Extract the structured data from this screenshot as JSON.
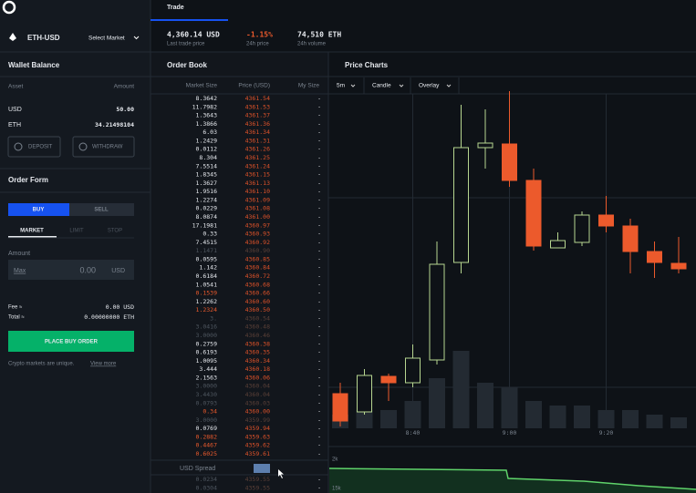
{
  "header": {
    "market": "ETH-USD",
    "select_market": "Select Market",
    "tab": "Trade",
    "stats": [
      {
        "value": "4,360.14 USD",
        "label": "Last trade price"
      },
      {
        "value": "-1.15%",
        "label": "24h price"
      },
      {
        "value": "74,510 ETH",
        "label": "24h volume"
      }
    ]
  },
  "wallet": {
    "title": "Wallet Balance",
    "columns": [
      "Asset",
      "Amount"
    ],
    "rows": [
      [
        "USD",
        "50.00"
      ],
      [
        "ETH",
        "34.21498104"
      ]
    ],
    "deposit": "DEPOSIT",
    "withdraw": "WITHDRAW"
  },
  "order_form": {
    "title": "Order Form",
    "sides": [
      "BUY",
      "SELL"
    ],
    "types": [
      "MARKET",
      "LIMIT",
      "STOP"
    ],
    "amount_label": "Amount",
    "max": "Max",
    "amount": "0.00",
    "currency": "USD",
    "fee_label": "Fee ≈",
    "fee": "0.00 USD",
    "total_label": "Total ≈",
    "total": "0.00000000 ETH",
    "submit": "PLACE BUY ORDER",
    "note": "Crypto markets are unique.",
    "note_link": "View more"
  },
  "order_book": {
    "title": "Order Book",
    "columns": [
      "Market Size",
      "Price (USD)",
      "My Size"
    ],
    "asks": [
      {
        "size": "8.3642",
        "price": "4361.54",
        "my_size": "-"
      },
      {
        "size": "11.7982",
        "price": "4361.53",
        "my_size": "-"
      },
      {
        "size": "1.3643",
        "price": "4361.37",
        "my_size": "-"
      },
      {
        "size": "1.3866",
        "price": "4361.36",
        "my_size": "-"
      },
      {
        "size": "6.03",
        "price": "4361.34",
        "my_size": "-"
      },
      {
        "size": "1.2429",
        "price": "4361.31",
        "my_size": "-"
      },
      {
        "size": "0.0112",
        "price": "4361.26",
        "my_size": "-"
      },
      {
        "size": "8.304",
        "price": "4361.25",
        "my_size": "-"
      },
      {
        "size": "7.5514",
        "price": "4361.24",
        "my_size": "-"
      },
      {
        "size": "1.8345",
        "price": "4361.15",
        "my_size": "-"
      },
      {
        "size": "1.3627",
        "price": "4361.13",
        "my_size": "-"
      },
      {
        "size": "1.9516",
        "price": "4361.10",
        "my_size": "-"
      },
      {
        "size": "1.2274",
        "price": "4361.09",
        "my_size": "-"
      },
      {
        "size": "0.0229",
        "price": "4361.08",
        "my_size": "-"
      },
      {
        "size": "8.0874",
        "price": "4361.00",
        "my_size": "-"
      },
      {
        "size": "17.1981",
        "price": "4360.97",
        "my_size": "-"
      },
      {
        "size": "0.33",
        "price": "4360.93",
        "my_size": "-"
      },
      {
        "size": "7.4515",
        "price": "4360.92",
        "my_size": "-"
      },
      {
        "size": "1.1471",
        "price": "4360.90",
        "my_size": "-",
        "tone": "faded"
      },
      {
        "size": "0.0595",
        "price": "4360.85",
        "my_size": "-"
      },
      {
        "size": "1.142",
        "price": "4360.84",
        "my_size": "-"
      },
      {
        "size": "0.6184",
        "price": "4360.72",
        "my_size": "-"
      },
      {
        "size": "1.0541",
        "price": "4360.68",
        "my_size": "-"
      },
      {
        "size": "0.1539",
        "price": "4360.66",
        "my_size": "-",
        "tone": "red"
      },
      {
        "size": "1.2262",
        "price": "4360.60",
        "my_size": "-"
      },
      {
        "size": "1.2324",
        "price": "4360.50",
        "my_size": "-",
        "tone": "red"
      },
      {
        "size": "3.",
        "price": "4360.54",
        "my_size": "-",
        "tone": "faded"
      },
      {
        "size": "3.0416",
        "price": "4360.48",
        "my_size": "-",
        "tone": "faded"
      },
      {
        "size": "3.0000",
        "price": "4360.46",
        "my_size": "-",
        "tone": "faded"
      },
      {
        "size": "0.2759",
        "price": "4360.38",
        "my_size": "-"
      },
      {
        "size": "0.6193",
        "price": "4360.35",
        "my_size": "-"
      },
      {
        "size": "1.0095",
        "price": "4360.34",
        "my_size": "-"
      },
      {
        "size": "3.444",
        "price": "4360.18",
        "my_size": "-"
      },
      {
        "size": "2.1563",
        "price": "4360.06",
        "my_size": "-"
      },
      {
        "size": "3.0000",
        "price": "4360.04",
        "my_size": "-",
        "tone": "faded"
      },
      {
        "size": "3.4430",
        "price": "4360.04",
        "my_size": "-",
        "tone": "faded"
      },
      {
        "size": "0.0793",
        "price": "4360.03",
        "my_size": "-",
        "tone": "faded"
      },
      {
        "size": "0.34",
        "price": "4360.00",
        "my_size": "-",
        "tone": "red"
      },
      {
        "size": "3.0000",
        "price": "4359.99",
        "my_size": "-",
        "tone": "faded"
      },
      {
        "size": "0.0769",
        "price": "4359.94",
        "my_size": "-"
      },
      {
        "size": "0.2882",
        "price": "4359.63",
        "my_size": "-",
        "tone": "red"
      },
      {
        "size": "0.4467",
        "price": "4359.62",
        "my_size": "-",
        "tone": "red"
      },
      {
        "size": "0.6025",
        "price": "4359.61",
        "my_size": "-",
        "tone": "red"
      }
    ],
    "spread_label": "USD Spread",
    "bids": [
      {
        "size": "0.0234",
        "price": "4359.55",
        "my_size": "-",
        "tone": "faded"
      },
      {
        "size": "0.0304",
        "price": "4359.55",
        "my_size": "-",
        "tone": "faded"
      }
    ]
  },
  "price_chart": {
    "title": "Price Charts",
    "controls": [
      "5m",
      "Candle",
      "Overlay"
    ],
    "type": "candlestick",
    "categories": [
      null,
      null,
      null,
      "8:40",
      null,
      null,
      null,
      "9:00",
      null,
      null,
      null,
      "9:20",
      null,
      null,
      null
    ],
    "open": [
      4345.8,
      4343.8,
      4347.7,
      4347.0,
      4349.5,
      4360.2,
      4372.8,
      4373.2,
      4369.2,
      4361.8,
      4362.4,
      4365.4,
      4364.2,
      4361.4,
      4360.1
    ],
    "high": [
      4347.0,
      4348.5,
      4348.0,
      4351.2,
      4362.5,
      4377.5,
      4377.0,
      4379.0,
      4370.5,
      4363.5,
      4365.8,
      4367.5,
      4365.0,
      4362.5,
      4363.0
    ],
    "low": [
      4342.2,
      4343.5,
      4345.0,
      4346.5,
      4349.0,
      4359.0,
      4370.5,
      4368.5,
      4361.5,
      4361.8,
      4362.0,
      4363.5,
      4359.0,
      4358.5,
      4359.0
    ],
    "close": [
      4342.8,
      4347.8,
      4347.0,
      4349.7,
      4360.0,
      4372.8,
      4373.3,
      4369.2,
      4362.0,
      4362.6,
      4365.4,
      4364.2,
      4361.4,
      4360.2,
      4359.5
    ],
    "ylim": [
      4342,
      4380
    ],
    "volume": [
      15,
      20,
      20,
      30,
      55,
      85,
      50,
      45,
      30,
      25,
      25,
      20,
      20,
      15,
      12
    ],
    "volume_lim": [
      0,
      100
    ],
    "up_color": "#b7d690",
    "down_color": "#ec5a2c",
    "depth_labels": [
      "2k",
      "15k"
    ]
  }
}
